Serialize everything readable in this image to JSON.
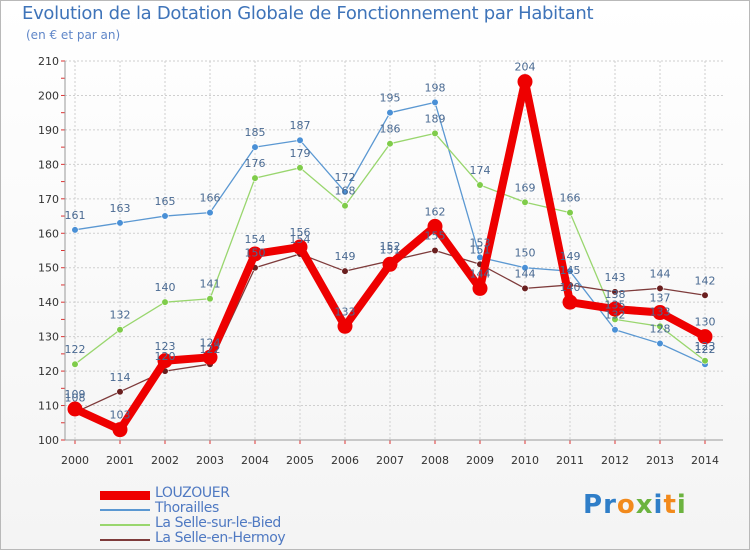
{
  "title": "Evolution de la Dotation Globale de Fonctionnement par Habitant",
  "subtitle": "(en € et par an)",
  "logo": {
    "text": "Proxiti",
    "letters": [
      "P",
      "r",
      "o",
      "x",
      "i",
      "t",
      "i"
    ],
    "colors": [
      "#2f7ec8",
      "#2f7ec8",
      "#f28a1c",
      "#6cb33f",
      "#2f7ec8",
      "#f28a1c",
      "#6cb33f"
    ]
  },
  "chart_data": {
    "type": "line",
    "title": "Evolution de la Dotation Globale de Fonctionnement par Habitant",
    "ylabel": "(en € et par an)",
    "xlabel": "",
    "x": [
      2000,
      2001,
      2002,
      2003,
      2004,
      2005,
      2006,
      2007,
      2008,
      2009,
      2010,
      2011,
      2012,
      2013,
      2014
    ],
    "ylim": [
      100,
      210
    ],
    "yticks": [
      100,
      110,
      120,
      130,
      140,
      150,
      160,
      170,
      180,
      190,
      200,
      210
    ],
    "grid": true,
    "legend": "bottom-left",
    "series": [
      {
        "name": "Thorailles",
        "color": "#5b98d2",
        "markerColor": "#4a90d6",
        "labelColor": "#4a6a92",
        "values": [
          161,
          163,
          165,
          166,
          185,
          187,
          172,
          195,
          198,
          153,
          150,
          149,
          132,
          128,
          122
        ],
        "labels": [
          "161",
          "163",
          "165",
          "166",
          "185",
          "187",
          "172",
          "195",
          "198",
          "153",
          "150",
          "149",
          "132",
          "128",
          "122"
        ]
      },
      {
        "name": "La Selle-sur-le-Bied",
        "color": "#99d66e",
        "markerColor": "#7fcc4a",
        "labelColor": "#4a6a92",
        "values": [
          122,
          132,
          140,
          141,
          176,
          179,
          168,
          186,
          189,
          174,
          169,
          166,
          135,
          133,
          123
        ],
        "labels": [
          "122",
          "132",
          "140",
          "141",
          "176",
          "179",
          "168",
          "186",
          "189",
          "174",
          "169",
          "166",
          "135",
          "133",
          "123"
        ]
      },
      {
        "name": "La Selle-en-Hermoy",
        "color": "#7e3b3b",
        "markerColor": "#6a1f1f",
        "labelColor": "#4a6a92",
        "values": [
          108,
          114,
          120,
          122,
          150,
          154,
          149,
          152,
          155,
          151,
          144,
          145,
          143,
          144,
          142
        ],
        "labels": [
          "108",
          "114",
          "120",
          "122",
          "150",
          "154",
          "149",
          "152",
          "155",
          "151",
          "144",
          "145",
          "143",
          "144",
          "142"
        ]
      },
      {
        "name": "LOUZOUER",
        "color": "#ee0000",
        "markerColor": "#ee0000",
        "labelColor": "#4a6a92",
        "values": [
          109,
          103,
          123,
          124,
          154,
          156,
          133,
          151,
          162,
          144,
          204,
          140,
          138,
          137,
          130
        ],
        "labels": [
          "109",
          "103",
          "123",
          "124",
          "154",
          "156",
          "133",
          "151",
          "162",
          "144",
          "204",
          "140",
          "138",
          "137",
          "130"
        ]
      }
    ]
  }
}
